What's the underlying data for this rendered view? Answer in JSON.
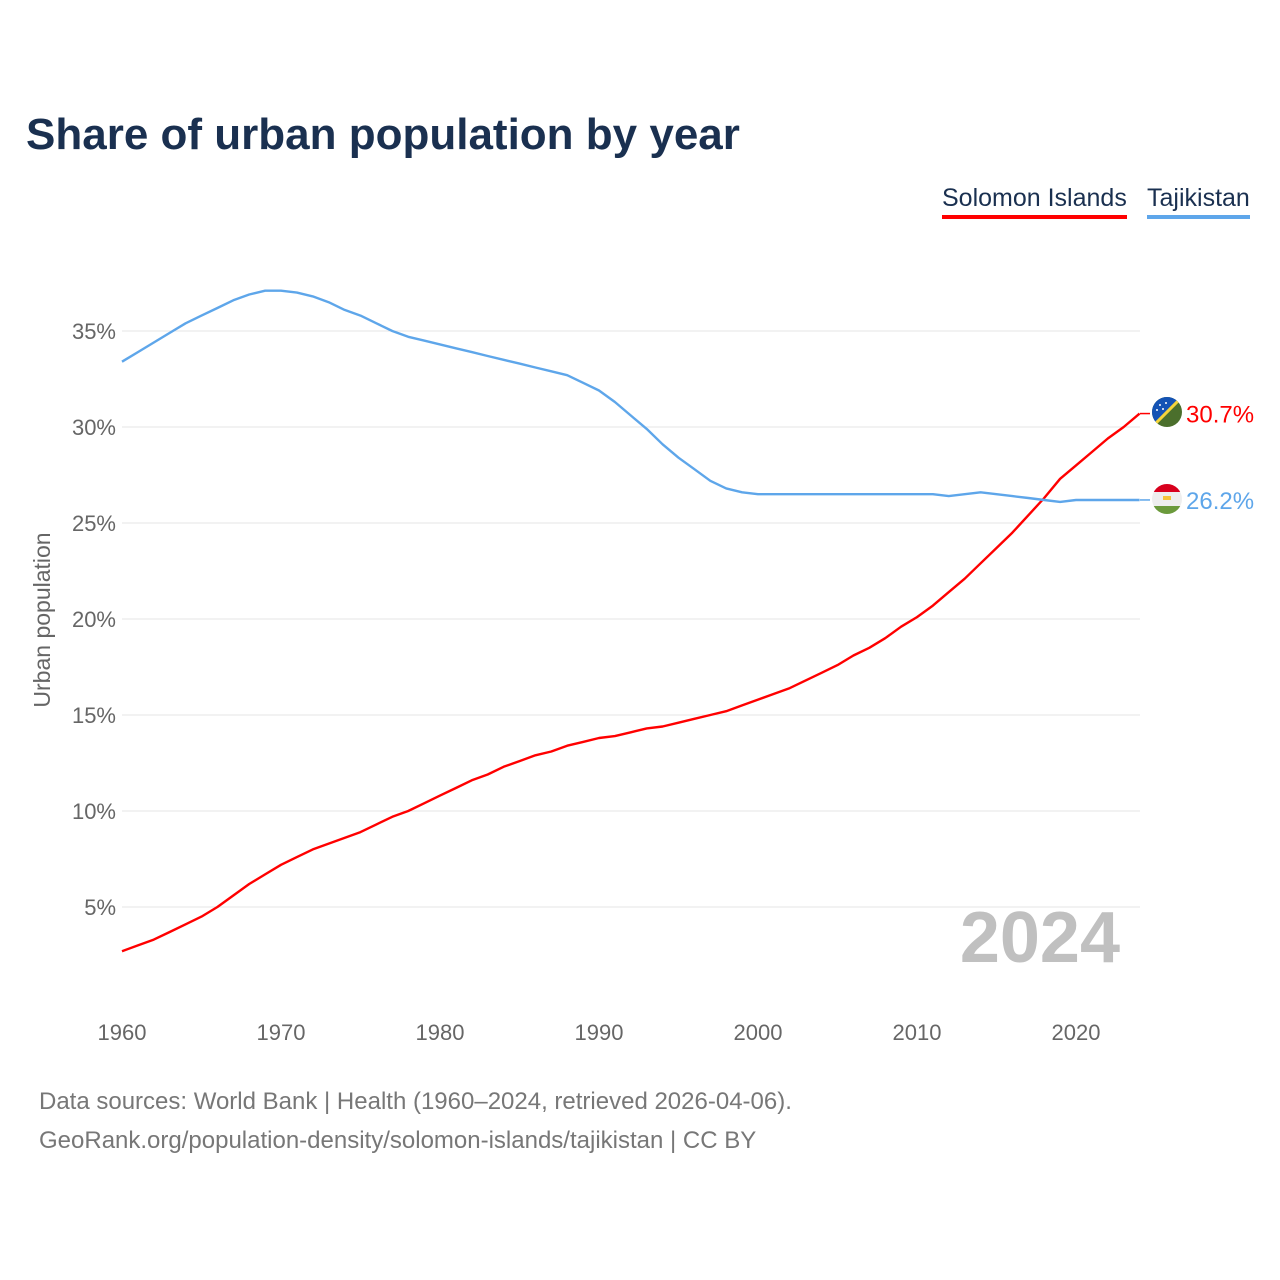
{
  "title": "Share of urban population by year",
  "footer": {
    "line1": "Data sources: World Bank | Health (1960–2024, retrieved 2026-04-06).",
    "line2": "GeoRank.org/population-density/solomon-islands/tajikistan | CC BY"
  },
  "chart_data": {
    "type": "line",
    "title": "Share of urban population by year",
    "ylabel": "Urban population",
    "xlabel": "",
    "year_label": "2024",
    "ylim": [
      0,
      37.5
    ],
    "xlim": [
      1960,
      2024
    ],
    "x_ticks": [
      1960,
      1970,
      1980,
      1990,
      2000,
      2010,
      2020
    ],
    "y_ticks": [
      5,
      10,
      15,
      20,
      25,
      30,
      35
    ],
    "y_tick_labels": [
      "5%",
      "10%",
      "15%",
      "20%",
      "25%",
      "30%",
      "35%"
    ],
    "legend_position": "top-right",
    "x_start": 1960,
    "series": [
      {
        "name": "Solomon Islands",
        "color": "#ff0000",
        "end_label": "30.7%",
        "flag": "solomon-islands-flag-icon",
        "values": [
          2.7,
          3.0,
          3.3,
          3.7,
          4.1,
          4.5,
          5.0,
          5.6,
          6.2,
          6.7,
          7.2,
          7.6,
          8.0,
          8.3,
          8.6,
          8.9,
          9.3,
          9.7,
          10.0,
          10.4,
          10.8,
          11.2,
          11.6,
          11.9,
          12.3,
          12.6,
          12.9,
          13.1,
          13.4,
          13.6,
          13.8,
          13.9,
          14.1,
          14.3,
          14.4,
          14.6,
          14.8,
          15.0,
          15.2,
          15.5,
          15.8,
          16.1,
          16.4,
          16.8,
          17.2,
          17.6,
          18.1,
          18.5,
          19.0,
          19.6,
          20.1,
          20.7,
          21.4,
          22.1,
          22.9,
          23.7,
          24.5,
          25.4,
          26.3,
          27.3,
          28.0,
          28.7,
          29.4,
          30.0,
          30.7
        ]
      },
      {
        "name": "Tajikistan",
        "color": "#5ea6ea",
        "end_label": "26.2%",
        "flag": "tajikistan-flag-icon",
        "values": [
          33.4,
          33.9,
          34.4,
          34.9,
          35.4,
          35.8,
          36.2,
          36.6,
          36.9,
          37.1,
          37.1,
          37.0,
          36.8,
          36.5,
          36.1,
          35.8,
          35.4,
          35.0,
          34.7,
          34.5,
          34.3,
          34.1,
          33.9,
          33.7,
          33.5,
          33.3,
          33.1,
          32.9,
          32.7,
          32.3,
          31.9,
          31.3,
          30.6,
          29.9,
          29.1,
          28.4,
          27.8,
          27.2,
          26.8,
          26.6,
          26.5,
          26.5,
          26.5,
          26.5,
          26.5,
          26.5,
          26.5,
          26.5,
          26.5,
          26.5,
          26.5,
          26.5,
          26.4,
          26.5,
          26.6,
          26.5,
          26.4,
          26.3,
          26.2,
          26.1,
          26.2,
          26.2,
          26.2,
          26.2,
          26.2
        ]
      }
    ]
  }
}
